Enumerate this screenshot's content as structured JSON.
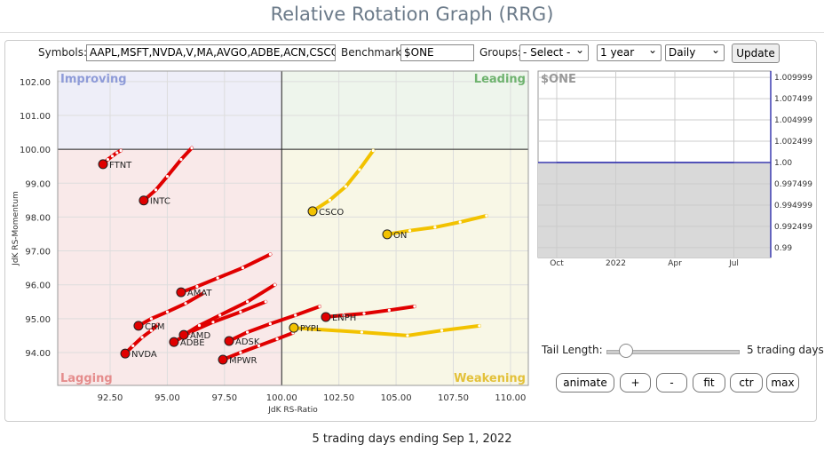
{
  "header": {
    "title": "Relative Rotation Graph (RRG)"
  },
  "form": {
    "symbols_label": "Symbols:",
    "symbols_value": "AAPL,MSFT,NVDA,V,MA,AVGO,ADBE,ACN,CSCO",
    "benchmark_label": "Benchmark:",
    "benchmark_value": "$ONE",
    "groups_label": "Groups:",
    "groups_value": "- Select -",
    "period_value": "1 year",
    "frequency_value": "Daily",
    "update_button": "Update"
  },
  "controls": {
    "tail_label": "Tail Length:",
    "tail_value": "5 trading days",
    "buttons": [
      "animate",
      "+",
      "-",
      "fit",
      "ctr",
      "max"
    ]
  },
  "footer": "5 trading days ending Sep 1, 2022",
  "chart_data": [
    {
      "type": "rrg",
      "x_label": "JdK RS-Ratio",
      "y_label": "JdK RS-Momentum",
      "quadrants": [
        "Improving",
        "Leading",
        "Lagging",
        "Weakening"
      ],
      "quadrant_colors": [
        "#eeeef8",
        "#eef5ec",
        "#f9e9e9",
        "#f8f7e6"
      ],
      "quadrant_text_colors": [
        "#8e9bd8",
        "#6fb36f",
        "#e58c8c",
        "#e3c13a"
      ],
      "xlim": [
        90.21,
        110.78
      ],
      "ylim": [
        93.03,
        102.31
      ],
      "xticks": [
        {
          "value": 92.5,
          "label": "92.50"
        },
        {
          "value": 95,
          "label": "95.00"
        },
        {
          "value": 97.5,
          "label": "97.50"
        },
        {
          "value": 100,
          "label": "100.00"
        },
        {
          "value": 102.5,
          "label": "102.50"
        },
        {
          "value": 105,
          "label": "105.00"
        },
        {
          "value": 107.5,
          "label": "107.50"
        },
        {
          "value": 110,
          "label": "110.00"
        }
      ],
      "yticks": [
        {
          "value": 94,
          "label": "94.00"
        },
        {
          "value": 95,
          "label": "95.00"
        },
        {
          "value": 96,
          "label": "96.00"
        },
        {
          "value": 97,
          "label": "97.00"
        },
        {
          "value": 98,
          "label": "98.00"
        },
        {
          "value": 99,
          "label": "99.00"
        },
        {
          "value": 100,
          "label": "100.00"
        },
        {
          "value": 101,
          "label": "101.00"
        },
        {
          "value": 102,
          "label": "102.00"
        }
      ],
      "series": [
        {
          "name": "FTNT",
          "color": "#e00000",
          "x": [
            92.97,
            92.8,
            92.6,
            92.4,
            92.19
          ],
          "values": [
            99.96,
            99.9,
            99.8,
            99.7,
            99.56
          ]
        },
        {
          "name": "INTC",
          "color": "#e00000",
          "x": [
            96.07,
            95.6,
            95.0,
            94.5,
            93.97
          ],
          "values": [
            100.04,
            99.7,
            99.2,
            98.8,
            98.49
          ]
        },
        {
          "name": "NVDA",
          "color": "#e00000",
          "x": [
            94.6,
            94.3,
            93.9,
            93.5,
            93.16
          ],
          "values": [
            94.84,
            94.65,
            94.45,
            94.2,
            93.97
          ]
        },
        {
          "name": "CRM",
          "color": "#e00000",
          "x": [
            96.6,
            95.8,
            95.0,
            94.3,
            93.74
          ],
          "values": [
            95.76,
            95.45,
            95.2,
            95.0,
            94.79
          ]
        },
        {
          "name": "ADBE",
          "color": "#e00000",
          "x": [
            99.3,
            98.2,
            97.0,
            96.0,
            95.29
          ],
          "values": [
            95.5,
            95.2,
            94.9,
            94.6,
            94.31
          ]
        },
        {
          "name": "AMD",
          "color": "#e00000",
          "x": [
            99.7,
            98.5,
            97.3,
            96.4,
            95.72
          ],
          "values": [
            96.0,
            95.5,
            95.1,
            94.8,
            94.52
          ]
        },
        {
          "name": "AMAT",
          "color": "#e00000",
          "x": [
            99.5,
            98.3,
            97.2,
            96.3,
            95.6
          ],
          "values": [
            96.9,
            96.5,
            96.2,
            95.95,
            95.78
          ]
        },
        {
          "name": "ADSK",
          "color": "#e00000",
          "x": [
            101.66,
            100.6,
            99.5,
            98.5,
            97.7
          ],
          "values": [
            95.36,
            95.1,
            94.85,
            94.6,
            94.34
          ]
        },
        {
          "name": "MPWR",
          "color": "#e00000",
          "x": [
            100.49,
            99.8,
            99.0,
            98.2,
            97.43
          ],
          "values": [
            94.58,
            94.4,
            94.2,
            94.0,
            93.79
          ]
        },
        {
          "name": "PYPL",
          "color": "#f2c200",
          "x": [
            108.64,
            107.0,
            105.5,
            103.5,
            100.53
          ],
          "values": [
            94.79,
            94.65,
            94.5,
            94.6,
            94.73
          ]
        },
        {
          "name": "ENPH",
          "color": "#e00000",
          "x": [
            105.81,
            104.7,
            103.6,
            102.7,
            101.93
          ],
          "values": [
            95.36,
            95.25,
            95.15,
            95.1,
            95.05
          ]
        },
        {
          "name": "ON",
          "color": "#f2c200",
          "x": [
            108.95,
            107.8,
            106.7,
            105.6,
            104.61
          ],
          "values": [
            98.04,
            97.85,
            97.7,
            97.6,
            97.49
          ]
        },
        {
          "name": "CSCO",
          "color": "#f2c200",
          "x": [
            104.0,
            103.4,
            102.8,
            102.1,
            101.35
          ],
          "values": [
            99.96,
            99.4,
            98.9,
            98.5,
            98.17
          ]
        }
      ]
    },
    {
      "type": "line",
      "title": "$ONE",
      "color": "#3b3bb0",
      "categories": [
        "Oct",
        "2022",
        "Apr",
        "Jul"
      ],
      "values": [
        1,
        1,
        1,
        1
      ],
      "ylim": [
        0.98884,
        1.01074
      ],
      "yticks": [
        1.009999,
        1.007499,
        1.004999,
        1.002499,
        {
          "value": 1,
          "label": "1.00"
        },
        0.997499,
        0.994999,
        0.992499,
        0.99
      ]
    }
  ]
}
